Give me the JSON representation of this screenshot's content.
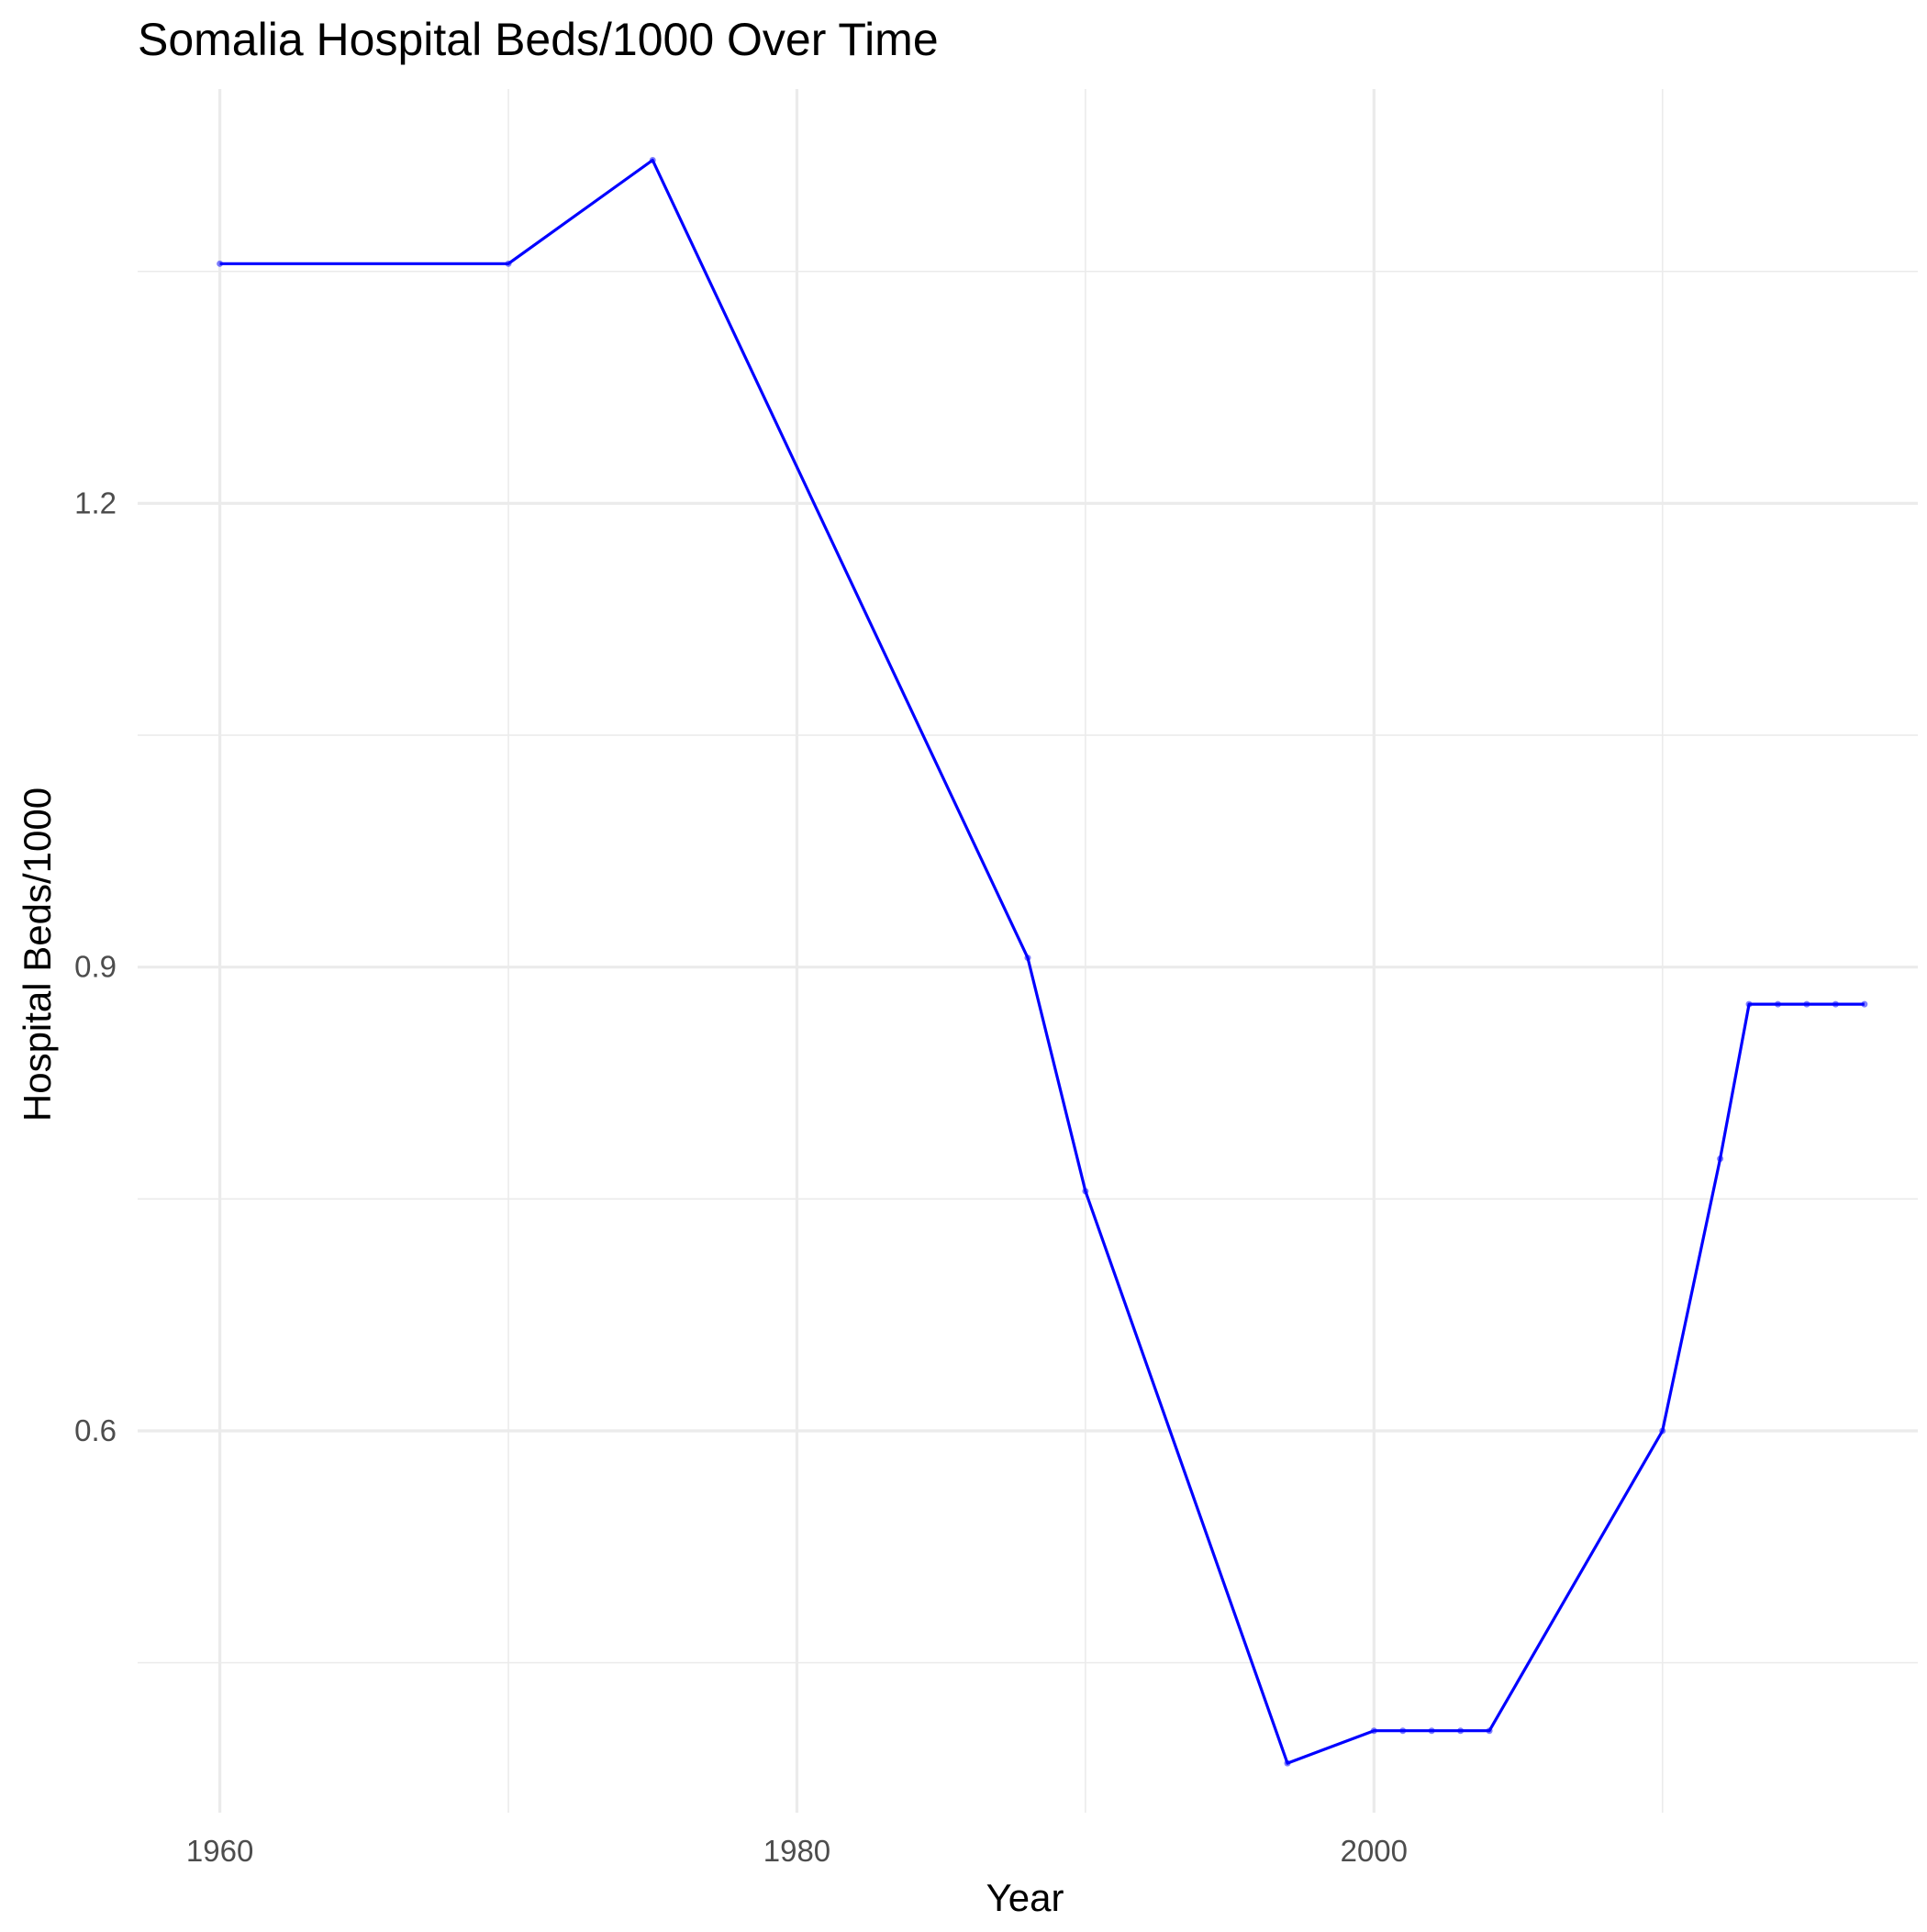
{
  "chart_data": {
    "type": "line",
    "title": "Somalia Hospital Beds/1000 Over Time",
    "xlabel": "Year",
    "ylabel": "Hospital Beds/1000",
    "xlim": [
      1957.15,
      2018.85
    ],
    "ylim": [
      0.353,
      1.468
    ],
    "x_major_ticks": [
      1960,
      1980,
      2000
    ],
    "x_minor_ticks": [
      1970,
      1990,
      2010
    ],
    "y_major_ticks": [
      0.6,
      0.9,
      1.2
    ],
    "y_minor_ticks": [
      0.45,
      0.75,
      1.05,
      1.35
    ],
    "tick_labels": {
      "x": [
        "1960",
        "1980",
        "2000"
      ],
      "y": [
        "0.6",
        "0.9",
        "1.2"
      ]
    },
    "grid": true,
    "legend": "none",
    "colors": {
      "line": "#0000ff",
      "grid": "#ebebeb",
      "tick_text": "#4d4d4d"
    },
    "series": [
      {
        "x": [
          1960,
          1970,
          1975,
          1988,
          1990,
          1997,
          2000,
          2001,
          2002,
          2003,
          2004,
          2010,
          2012,
          2013,
          2014,
          2015,
          2016,
          2017
        ],
        "y": [
          1.355,
          1.355,
          1.422,
          0.906,
          0.755,
          0.385,
          0.406,
          0.406,
          0.406,
          0.406,
          0.406,
          0.6,
          0.776,
          0.876,
          0.876,
          0.876,
          0.876,
          0.876
        ]
      }
    ]
  }
}
